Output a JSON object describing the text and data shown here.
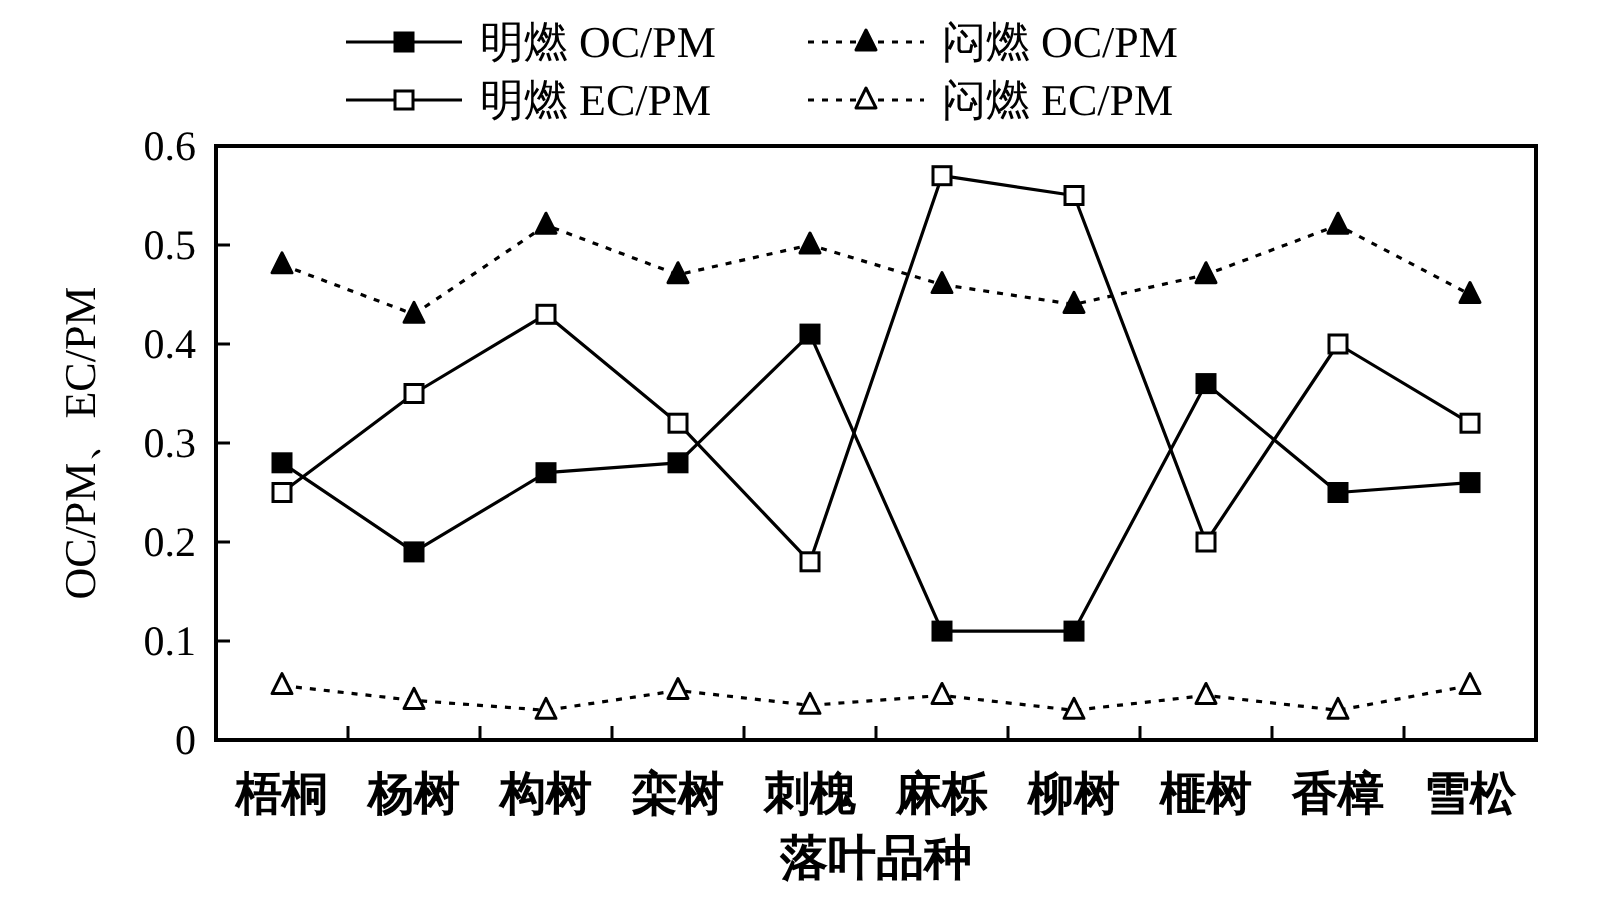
{
  "chart_data": {
    "type": "line",
    "categories": [
      "梧桐",
      "杨树",
      "构树",
      "栾树",
      "刺槐",
      "麻栎",
      "柳树",
      "榧树",
      "香樟",
      "雪松"
    ],
    "series": [
      {
        "name": "明燃 OC/PM",
        "color": "#000000",
        "marker": "square",
        "line_style": "solid",
        "values": [
          0.28,
          0.19,
          0.27,
          0.28,
          0.41,
          0.11,
          0.11,
          0.36,
          0.25,
          0.26
        ]
      },
      {
        "name": "闷燃 OC/PM",
        "color": "#000000",
        "marker": "triangle",
        "line_style": "dotted",
        "values": [
          0.48,
          0.43,
          0.52,
          0.47,
          0.5,
          0.46,
          0.44,
          0.47,
          0.52,
          0.45
        ]
      },
      {
        "name": "明燃 EC/PM",
        "color": "#000000",
        "marker": "square-open",
        "line_style": "solid",
        "values": [
          0.25,
          0.35,
          0.43,
          0.32,
          0.18,
          0.57,
          0.55,
          0.2,
          0.4,
          0.32
        ]
      },
      {
        "name": "闷燃 EC/PM",
        "color": "#000000",
        "marker": "triangle-open",
        "line_style": "dotted",
        "values": [
          0.055,
          0.04,
          0.03,
          0.05,
          0.035,
          0.045,
          0.03,
          0.045,
          0.03,
          0.055
        ]
      }
    ],
    "xlabel": "落叶品种",
    "ylabel": "OC/PM、EC/PM",
    "ylim": [
      0,
      0.6
    ],
    "yticks": [
      0,
      0.1,
      0.2,
      0.3,
      0.4,
      0.5,
      0.6
    ],
    "legend": "top"
  }
}
